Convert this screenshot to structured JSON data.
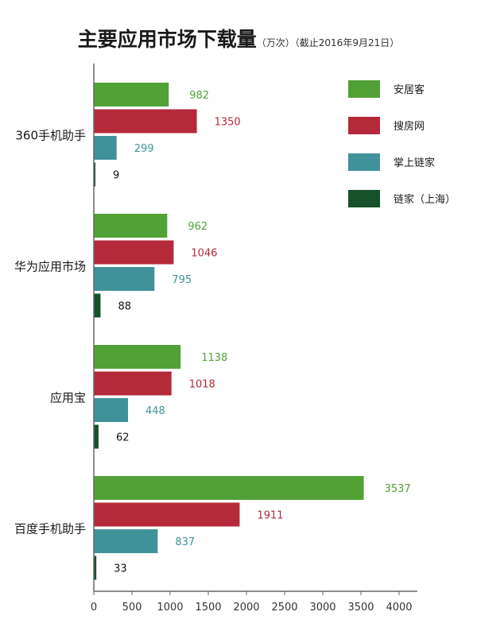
{
  "chart_data": {
    "type": "bar",
    "orientation": "horizontal",
    "title": "主要应用市场下载量",
    "subtitle": "（万次）（截止2016年9月21日）",
    "categories": [
      "360手机助手",
      "华为应用市场",
      "应用宝",
      "百度手机助手"
    ],
    "series": [
      {
        "name": "安居客",
        "color": "#52a137",
        "values": [
          982,
          962,
          1138,
          3537
        ]
      },
      {
        "name": "搜房网",
        "color": "#b52a3a",
        "values": [
          1350,
          1046,
          1018,
          1911
        ]
      },
      {
        "name": "掌上链家",
        "color": "#3f9299",
        "values": [
          299,
          795,
          448,
          837
        ]
      },
      {
        "name": "链家（上海）",
        "color": "#17512c",
        "values": [
          9,
          88,
          62,
          33
        ]
      }
    ],
    "xticks": [
      "0",
      "500",
      "1000",
      "1500",
      "2000",
      "2500",
      "3000",
      "3500",
      "4000"
    ],
    "xlim": [
      0,
      4000
    ],
    "legend_position": "top-right",
    "grid": false
  }
}
